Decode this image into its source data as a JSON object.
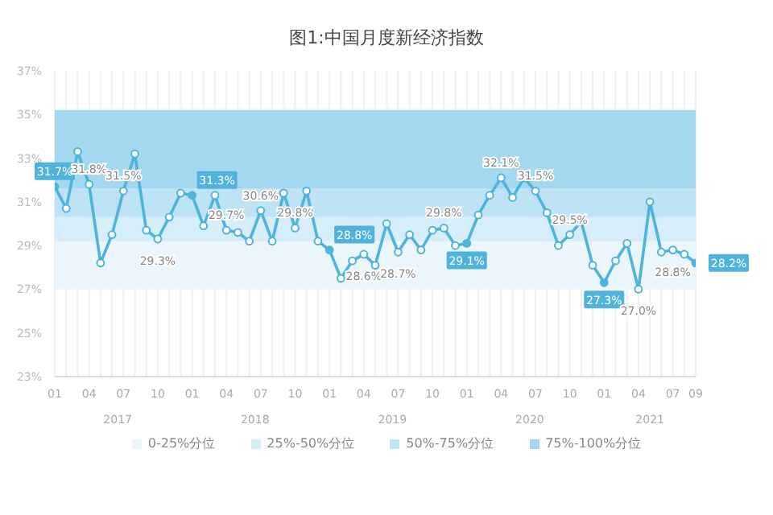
{
  "chart_data": {
    "type": "line",
    "title": "图1:中国月度新经济指数",
    "categories": [
      "01",
      null,
      null,
      "04",
      null,
      null,
      "07",
      null,
      null,
      "10",
      null,
      null,
      "01",
      null,
      null,
      "04",
      null,
      null,
      "07",
      null,
      null,
      "10",
      null,
      null,
      "01",
      null,
      null,
      "04",
      null,
      null,
      "07",
      null,
      null,
      "10",
      null,
      null,
      "01",
      null,
      null,
      "04",
      null,
      null,
      "07",
      null,
      null,
      "10",
      null,
      null,
      "01",
      null,
      null,
      "04",
      null,
      null,
      "07",
      null,
      "09"
    ],
    "series": [
      {
        "color": "#4fb3dc",
        "values": [
          31.7,
          30.7,
          33.3,
          31.8,
          28.2,
          29.5,
          31.5,
          33.2,
          29.7,
          29.3,
          30.3,
          31.4,
          31.3,
          29.9,
          31.3,
          29.7,
          29.6,
          29.2,
          30.6,
          29.2,
          31.4,
          29.8,
          31.5,
          29.2,
          28.8,
          27.5,
          28.3,
          28.6,
          28.1,
          30.0,
          28.7,
          29.5,
          28.8,
          29.7,
          29.8,
          29.0,
          29.1,
          30.4,
          31.3,
          32.1,
          31.2,
          32.1,
          31.5,
          30.5,
          29.0,
          29.5,
          30.1,
          28.1,
          27.3,
          28.3,
          29.1,
          27.0,
          31.0,
          28.7,
          28.8,
          28.6,
          28.2
        ],
        "value_labels": [
          "31.7%",
          null,
          null,
          "31.8%",
          null,
          null,
          "31.5%",
          null,
          null,
          "29.3%",
          null,
          null,
          "31.3%",
          null,
          null,
          "29.7%",
          null,
          null,
          "30.6%",
          null,
          null,
          "29.8%",
          null,
          null,
          "28.8%",
          null,
          null,
          "28.6%",
          null,
          null,
          "28.7%",
          null,
          null,
          null,
          "29.8%",
          null,
          "29.1%",
          null,
          null,
          "32.1%",
          null,
          null,
          "31.5%",
          null,
          null,
          "29.5%",
          null,
          null,
          "27.3%",
          null,
          null,
          "27.0%",
          null,
          null,
          "28.8%",
          null,
          "28.2%"
        ]
      }
    ],
    "annotations": [
      "2017",
      "2018",
      "2019",
      "2020",
      "2021"
    ],
    "ylim": [
      23,
      37
    ],
    "yticks": [
      {
        "value": 23,
        "label": "23%"
      },
      {
        "value": 25,
        "label": "25%"
      },
      {
        "value": 27,
        "label": "27%"
      },
      {
        "value": 29,
        "label": "29%"
      },
      {
        "value": 31,
        "label": "31%"
      },
      {
        "value": 33,
        "label": "33%"
      },
      {
        "value": 35,
        "label": "35%"
      },
      {
        "value": 37,
        "label": "37%"
      }
    ],
    "bands": [
      {
        "axis": "y",
        "from": 27,
        "to": 29.2,
        "label": "0-25%分位",
        "color": "#eaf6fc"
      },
      {
        "axis": "y",
        "from": 29.2,
        "to": 30.3,
        "label": "25%-50%分位",
        "color": "#d5eef9"
      },
      {
        "axis": "y",
        "from": 30.3,
        "to": 31.6,
        "label": "50%-75%分位",
        "color": "#bde3f5"
      },
      {
        "axis": "y",
        "from": 31.6,
        "to": 35.2,
        "label": "75%-100%分位",
        "color": "#a4d8f0"
      }
    ],
    "grid": "x",
    "legend": "bottom",
    "marker": "circle"
  }
}
